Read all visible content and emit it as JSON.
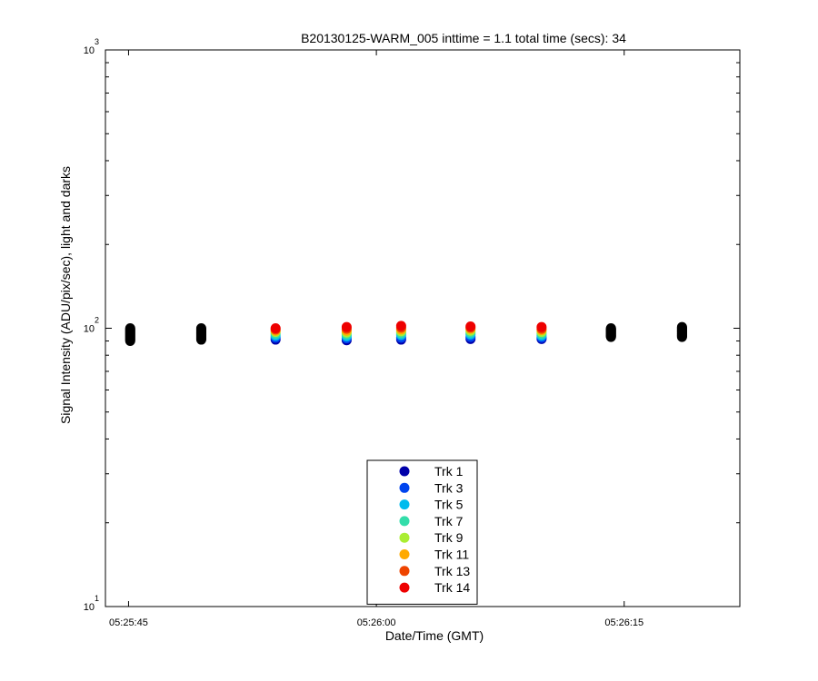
{
  "chart_data": {
    "type": "scatter",
    "title": "B20130125-WARM_005 inttime = 1.1 total time (secs): 34",
    "xlabel": "Date/Time (GMT)",
    "ylabel": "Signal Intensity (ADU/pix/sec), light and darks",
    "y_scale": "log",
    "ylim": [
      10,
      1000
    ],
    "y_ticks": [
      {
        "value": 10,
        "base": "10",
        "exp": "1"
      },
      {
        "value": 100,
        "base": "10",
        "exp": "2"
      },
      {
        "value": 1000,
        "base": "10",
        "exp": "3"
      }
    ],
    "xlim": [
      "05:25:43.6",
      "05:26:22.0"
    ],
    "x_ticks": [
      "05:25:45",
      "05:26:00",
      "05:26:15"
    ],
    "grid": false,
    "legend_position": "bottom-center",
    "series": [
      {
        "name": "Trk 1",
        "color": "#0000aa",
        "x": [
          "05:25:53.9",
          "05:25:58.2",
          "05:26:01.5",
          "05:26:05.7",
          "05:26:10.0"
        ],
        "y": [
          91,
          90.5,
          91,
          91.5,
          91.5
        ]
      },
      {
        "name": "Trk 3",
        "color": "#0044ee",
        "x": [
          "05:25:53.9",
          "05:25:58.2",
          "05:26:01.5",
          "05:26:05.7",
          "05:26:10.0"
        ],
        "y": [
          92.5,
          92,
          92.5,
          93,
          92.5
        ]
      },
      {
        "name": "Trk 5",
        "color": "#00bbee",
        "x": [
          "05:25:53.9",
          "05:25:58.2",
          "05:26:01.5",
          "05:26:05.7",
          "05:26:10.0"
        ],
        "y": [
          94,
          93.5,
          94.5,
          95,
          94
        ]
      },
      {
        "name": "Trk 7",
        "color": "#33ddaa",
        "x": [
          "05:25:53.9",
          "05:25:58.2",
          "05:26:01.5",
          "05:26:05.7",
          "05:26:10.0"
        ],
        "y": [
          95.5,
          95,
          96,
          96.5,
          95.5
        ]
      },
      {
        "name": "Trk 9",
        "color": "#aaee33",
        "x": [
          "05:25:53.9",
          "05:25:58.2",
          "05:26:01.5",
          "05:26:05.7",
          "05:26:10.0"
        ],
        "y": [
          97,
          96.5,
          97.5,
          98,
          97
        ]
      },
      {
        "name": "Trk 11",
        "color": "#ffaa00",
        "x": [
          "05:25:53.9",
          "05:25:58.2",
          "05:26:01.5",
          "05:26:05.7",
          "05:26:10.0"
        ],
        "y": [
          98,
          98,
          99,
          99.5,
          98.5
        ]
      },
      {
        "name": "Trk 13",
        "color": "#ee4400",
        "x": [
          "05:25:53.9",
          "05:25:58.2",
          "05:26:01.5",
          "05:26:05.7",
          "05:26:10.0"
        ],
        "y": [
          99,
          99.5,
          100.5,
          100.5,
          99.5
        ]
      },
      {
        "name": "Trk 14",
        "color": "#ee0000",
        "x": [
          "05:25:53.9",
          "05:25:58.2",
          "05:26:01.5",
          "05:26:05.7",
          "05:26:10.0"
        ],
        "y": [
          100,
          101,
          102,
          101.5,
          101
        ]
      }
    ],
    "darks": {
      "color": "#000000",
      "x": [
        "05:25:45.1",
        "05:25:49.4",
        "05:26:14.2",
        "05:26:18.5"
      ],
      "y_min": [
        90,
        91,
        93,
        93
      ],
      "y_max": [
        100,
        100,
        100,
        101
      ]
    }
  }
}
